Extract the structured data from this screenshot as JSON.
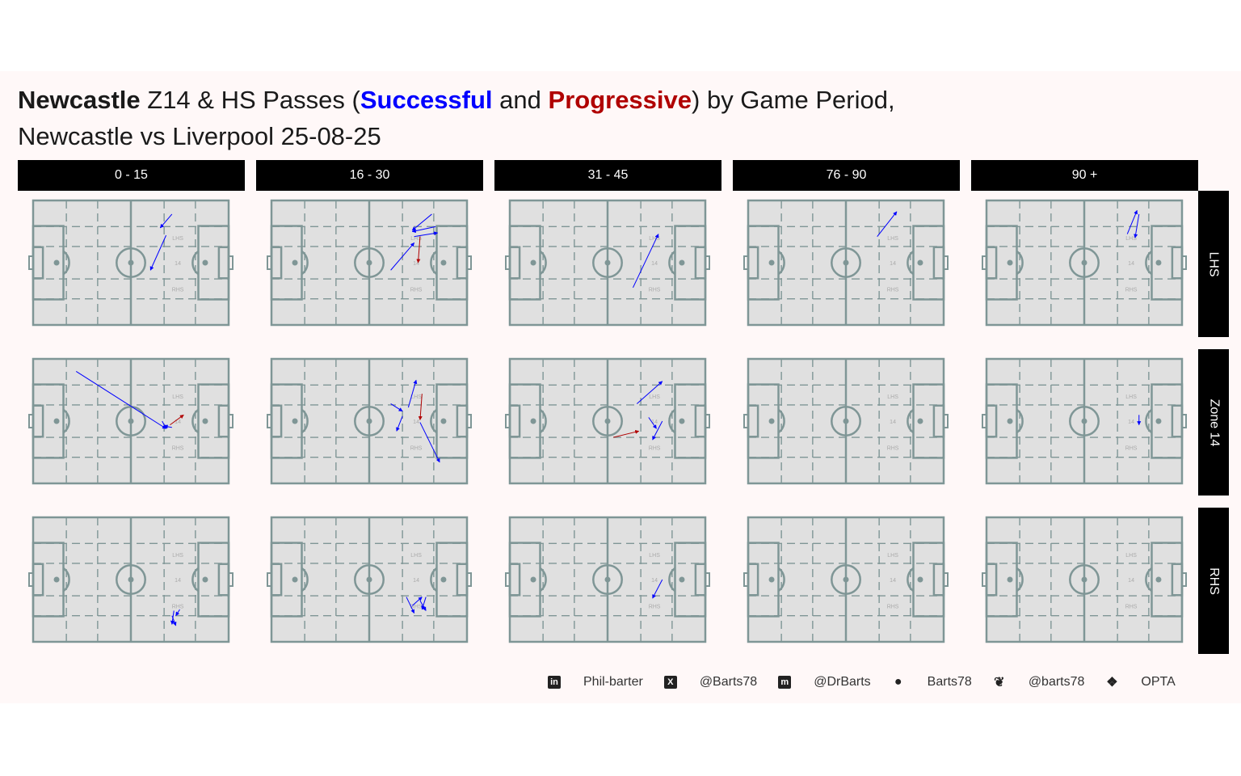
{
  "title": {
    "team": "Newcastle",
    "part1": " Z14 & HS Passes (",
    "successful": "Successful",
    "and": " and ",
    "progressive": "Progressive",
    "part2": ") by Game Period,",
    "line2": "Newcastle vs Liverpool 25-08-25"
  },
  "colors": {
    "successful": "#0000ff",
    "progressive": "#b00000",
    "pitch_fill": "#e0e0e0",
    "pitch_line": "#7f9696",
    "strip": "#000000"
  },
  "periods": [
    "0 - 15",
    "16 - 30",
    "31 - 45",
    "76 - 90",
    "90 +"
  ],
  "zones": [
    "LHS",
    "Zone 14",
    "RHS"
  ],
  "pitch_labels": {
    "lhs": "LHS",
    "z14": "14",
    "rhs": "RHS"
  },
  "caption": [
    {
      "icon": "linkedin-icon",
      "text": "Phil-barter"
    },
    {
      "icon": "x-icon",
      "text": "@Barts78"
    },
    {
      "icon": "mastodon-icon",
      "text": "@DrBarts"
    },
    {
      "icon": "github-icon",
      "text": "Barts78"
    },
    {
      "icon": "bluesky-icon",
      "text": "@barts78"
    },
    {
      "icon": "dropbox-icon",
      "text": "OPTA"
    }
  ],
  "chart_data": {
    "type": "scatter",
    "subtype": "pass-arrows on pitch facets",
    "x_range": [
      0,
      100
    ],
    "y_range": [
      0,
      100
    ],
    "facet_cols": [
      "0 - 15",
      "16 - 30",
      "31 - 45",
      "76 - 90",
      "90 +"
    ],
    "facet_rows": [
      "LHS",
      "Zone 14",
      "RHS"
    ],
    "passes": [
      {
        "period": "0 - 15",
        "zone": "LHS",
        "x": 71,
        "y": 89,
        "xend": 65,
        "yend": 78,
        "type": "successful"
      },
      {
        "period": "0 - 15",
        "zone": "LHS",
        "x": 68,
        "y": 72,
        "xend": 60,
        "yend": 44,
        "type": "successful"
      },
      {
        "period": "16 - 30",
        "zone": "LHS",
        "x": 84,
        "y": 79,
        "xend": 72,
        "yend": 75,
        "type": "successful"
      },
      {
        "period": "16 - 30",
        "zone": "LHS",
        "x": 82,
        "y": 89,
        "xend": 72,
        "yend": 76,
        "type": "successful"
      },
      {
        "period": "16 - 30",
        "zone": "LHS",
        "x": 73,
        "y": 71,
        "xend": 85,
        "yend": 74,
        "type": "successful"
      },
      {
        "period": "16 - 30",
        "zone": "LHS",
        "x": 61,
        "y": 44,
        "xend": 73,
        "yend": 66,
        "type": "successful"
      },
      {
        "period": "16 - 30",
        "zone": "LHS",
        "x": 76,
        "y": 71,
        "xend": 75,
        "yend": 50,
        "type": "progressive"
      },
      {
        "period": "31 - 45",
        "zone": "LHS",
        "x": 63,
        "y": 30,
        "xend": 76,
        "yend": 73,
        "type": "successful"
      },
      {
        "period": "76 - 90",
        "zone": "LHS",
        "x": 66,
        "y": 71,
        "xend": 76,
        "yend": 91,
        "type": "successful"
      },
      {
        "period": "90 +",
        "zone": "LHS",
        "x": 78,
        "y": 89,
        "xend": 76,
        "yend": 70,
        "type": "successful"
      },
      {
        "period": "90 +",
        "zone": "LHS",
        "x": 72,
        "y": 73,
        "xend": 77,
        "yend": 92,
        "type": "successful"
      },
      {
        "period": "0 - 15",
        "zone": "Zone 14",
        "x": 22,
        "y": 90,
        "xend": 68,
        "yend": 44,
        "type": "successful"
      },
      {
        "period": "0 - 15",
        "zone": "Zone 14",
        "x": 66,
        "y": 50,
        "xend": 68,
        "yend": 44,
        "type": "successful"
      },
      {
        "period": "0 - 15",
        "zone": "Zone 14",
        "x": 71,
        "y": 45,
        "xend": 67,
        "yend": 46,
        "type": "successful"
      },
      {
        "period": "0 - 15",
        "zone": "Zone 14",
        "x": 70,
        "y": 47,
        "xend": 77,
        "yend": 55,
        "type": "progressive"
      },
      {
        "period": "16 - 30",
        "zone": "Zone 14",
        "x": 61,
        "y": 64,
        "xend": 67,
        "yend": 58,
        "type": "successful"
      },
      {
        "period": "16 - 30",
        "zone": "Zone 14",
        "x": 67,
        "y": 54,
        "xend": 64,
        "yend": 42,
        "type": "successful"
      },
      {
        "period": "16 - 30",
        "zone": "Zone 14",
        "x": 70,
        "y": 61,
        "xend": 74,
        "yend": 83,
        "type": "successful"
      },
      {
        "period": "16 - 30",
        "zone": "Zone 14",
        "x": 76,
        "y": 49,
        "xend": 86,
        "yend": 17,
        "type": "successful"
      },
      {
        "period": "16 - 30",
        "zone": "Zone 14",
        "x": 77,
        "y": 72,
        "xend": 76,
        "yend": 51,
        "type": "progressive"
      },
      {
        "period": "31 - 45",
        "zone": "Zone 14",
        "x": 65,
        "y": 64,
        "xend": 78,
        "yend": 82,
        "type": "successful"
      },
      {
        "period": "31 - 45",
        "zone": "Zone 14",
        "x": 71,
        "y": 53,
        "xend": 75,
        "yend": 44,
        "type": "successful"
      },
      {
        "period": "31 - 45",
        "zone": "Zone 14",
        "x": 78,
        "y": 50,
        "xend": 73,
        "yend": 35,
        "type": "successful"
      },
      {
        "period": "31 - 45",
        "zone": "Zone 14",
        "x": 53,
        "y": 37,
        "xend": 66,
        "yend": 42,
        "type": "progressive"
      },
      {
        "period": "90 +",
        "zone": "Zone 14",
        "x": 78,
        "y": 55,
        "xend": 78,
        "yend": 47,
        "type": "successful"
      },
      {
        "period": "0 - 15",
        "zone": "RHS",
        "x": 71,
        "y": 21,
        "xend": 73,
        "yend": 13,
        "type": "successful"
      },
      {
        "period": "0 - 15",
        "zone": "RHS",
        "x": 72,
        "y": 25,
        "xend": 71,
        "yend": 14,
        "type": "successful"
      },
      {
        "period": "0 - 15",
        "zone": "RHS",
        "x": 75,
        "y": 26,
        "xend": 73,
        "yend": 21,
        "type": "successful"
      },
      {
        "period": "16 - 30",
        "zone": "RHS",
        "x": 69,
        "y": 36,
        "xend": 73,
        "yend": 23,
        "type": "successful"
      },
      {
        "period": "16 - 30",
        "zone": "RHS",
        "x": 72,
        "y": 29,
        "xend": 77,
        "yend": 36,
        "type": "successful"
      },
      {
        "period": "16 - 30",
        "zone": "RHS",
        "x": 79,
        "y": 36,
        "xend": 77,
        "yend": 26,
        "type": "successful"
      },
      {
        "period": "16 - 30",
        "zone": "RHS",
        "x": 76,
        "y": 33,
        "xend": 79,
        "yend": 25,
        "type": "successful"
      },
      {
        "period": "31 - 45",
        "zone": "RHS",
        "x": 78,
        "y": 50,
        "xend": 73,
        "yend": 35,
        "type": "successful"
      }
    ]
  }
}
